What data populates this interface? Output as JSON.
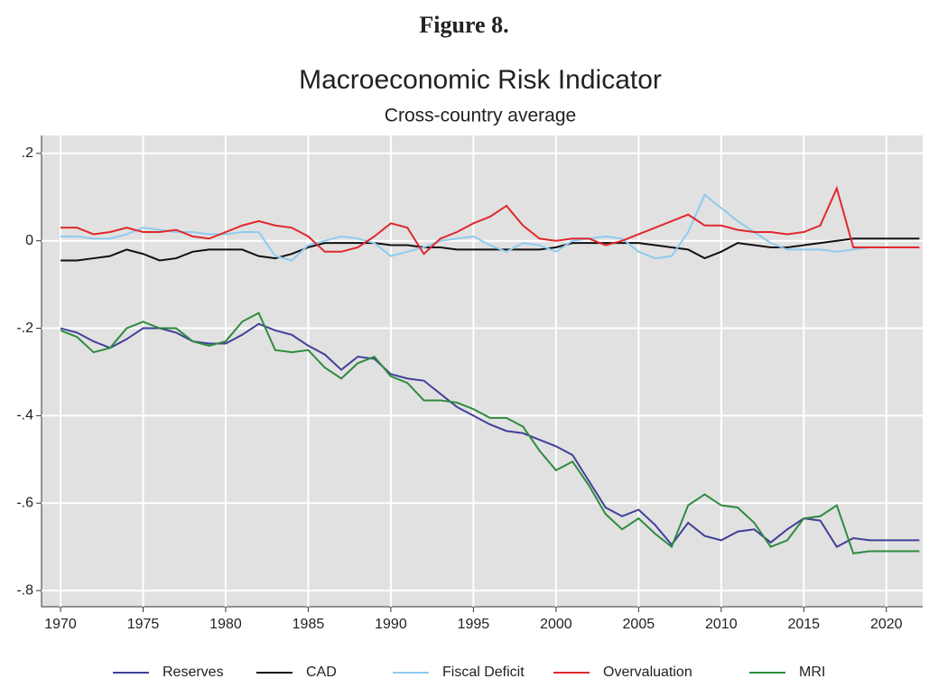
{
  "figure_label": "Figure 8.",
  "chart_data": {
    "type": "line",
    "title": "Macroeconomic Risk Indicator",
    "subtitle": "Cross-country average",
    "x": [
      1970,
      1971,
      1972,
      1973,
      1974,
      1975,
      1976,
      1977,
      1978,
      1979,
      1980,
      1981,
      1982,
      1983,
      1984,
      1985,
      1986,
      1987,
      1988,
      1989,
      1990,
      1991,
      1992,
      1993,
      1994,
      1995,
      1996,
      1997,
      1998,
      1999,
      2000,
      2001,
      2002,
      2003,
      2004,
      2005,
      2006,
      2007,
      2008,
      2009,
      2010,
      2011,
      2012,
      2013,
      2014,
      2015,
      2016,
      2017,
      2018,
      2019,
      2020,
      2021,
      2022
    ],
    "xlim": [
      1968.85,
      2022.2
    ],
    "xticks": [
      1970,
      1975,
      1980,
      1985,
      1990,
      1995,
      2000,
      2005,
      2010,
      2015,
      2020
    ],
    "ylim": [
      -0.837,
      0.241
    ],
    "yticks": [
      {
        "value": 0.2,
        "label": ".2"
      },
      0,
      {
        "value": -0.2,
        "label": "-.2"
      },
      {
        "value": -0.4,
        "label": "-.4"
      },
      {
        "value": -0.6,
        "label": "-.6"
      },
      {
        "value": -0.8,
        "label": "-.8"
      }
    ],
    "grid": true,
    "legend": "bottom",
    "series": [
      {
        "name": "Reserves",
        "color": "#40409a",
        "values": [
          -0.2,
          -0.21,
          -0.23,
          -0.245,
          -0.225,
          -0.2,
          -0.2,
          -0.21,
          -0.23,
          -0.235,
          -0.235,
          -0.215,
          -0.19,
          -0.205,
          -0.215,
          -0.24,
          -0.26,
          -0.295,
          -0.265,
          -0.27,
          -0.305,
          -0.315,
          -0.32,
          -0.35,
          -0.38,
          -0.4,
          -0.42,
          -0.435,
          -0.44,
          -0.455,
          -0.47,
          -0.49,
          -0.55,
          -0.61,
          -0.63,
          -0.615,
          -0.65,
          -0.695,
          -0.645,
          -0.675,
          -0.685,
          -0.665,
          -0.66,
          -0.69,
          -0.66,
          -0.635,
          -0.64,
          -0.7,
          -0.68,
          -0.685,
          -0.685,
          -0.685,
          -0.685
        ]
      },
      {
        "name": "CAD",
        "color": "#111111",
        "values": [
          -0.045,
          -0.045,
          -0.04,
          -0.035,
          -0.02,
          -0.03,
          -0.045,
          -0.04,
          -0.025,
          -0.02,
          -0.02,
          -0.02,
          -0.035,
          -0.04,
          -0.03,
          -0.015,
          -0.005,
          -0.005,
          -0.005,
          -0.005,
          -0.01,
          -0.01,
          -0.015,
          -0.015,
          -0.02,
          -0.02,
          -0.02,
          -0.02,
          -0.02,
          -0.02,
          -0.015,
          -0.005,
          -0.005,
          -0.005,
          -0.005,
          -0.005,
          -0.01,
          -0.015,
          -0.02,
          -0.04,
          -0.025,
          -0.005,
          -0.01,
          -0.015,
          -0.015,
          -0.01,
          -0.005,
          0,
          0.005,
          0.005,
          0.005,
          0.005,
          0.005
        ]
      },
      {
        "name": "Fiscal Deficit",
        "color": "#8ecbee",
        "values": [
          0.01,
          0.01,
          0.005,
          0.005,
          0.015,
          0.03,
          0.025,
          0.02,
          0.02,
          0.015,
          0.015,
          0.02,
          0.02,
          -0.035,
          -0.045,
          -0.01,
          0,
          0.01,
          0.005,
          -0.005,
          -0.035,
          -0.025,
          -0.015,
          0,
          0.005,
          0.01,
          -0.01,
          -0.025,
          -0.005,
          -0.01,
          -0.025,
          0,
          0.005,
          0.01,
          0.005,
          -0.025,
          -0.04,
          -0.035,
          0.02,
          0.105,
          0.075,
          0.045,
          0.02,
          -0.005,
          -0.02,
          -0.02,
          -0.02,
          -0.025,
          -0.02,
          -0.015,
          -0.015,
          -0.015,
          -0.015
        ]
      },
      {
        "name": "Overvaluation",
        "color": "#e0282d",
        "values": [
          0.03,
          0.03,
          0.015,
          0.02,
          0.03,
          0.02,
          0.02,
          0.025,
          0.01,
          0.005,
          0.02,
          0.035,
          0.045,
          0.035,
          0.03,
          0.01,
          -0.025,
          -0.025,
          -0.015,
          0.01,
          0.04,
          0.03,
          -0.03,
          0.005,
          0.02,
          0.04,
          0.055,
          0.08,
          0.035,
          0.005,
          0,
          0.005,
          0.005,
          -0.01,
          0,
          0.015,
          0.03,
          0.045,
          0.06,
          0.035,
          0.035,
          0.025,
          0.02,
          0.02,
          0.015,
          0.02,
          0.035,
          0.12,
          -0.015,
          -0.015,
          -0.015,
          -0.015,
          -0.015
        ]
      },
      {
        "name": "MRI",
        "color": "#2e8b3e",
        "values": [
          -0.205,
          -0.22,
          -0.255,
          -0.245,
          -0.2,
          -0.185,
          -0.2,
          -0.2,
          -0.23,
          -0.24,
          -0.23,
          -0.185,
          -0.165,
          -0.25,
          -0.255,
          -0.25,
          -0.29,
          -0.315,
          -0.28,
          -0.265,
          -0.31,
          -0.325,
          -0.365,
          -0.365,
          -0.37,
          -0.385,
          -0.405,
          -0.405,
          -0.425,
          -0.48,
          -0.525,
          -0.505,
          -0.56,
          -0.625,
          -0.66,
          -0.635,
          -0.67,
          -0.7,
          -0.605,
          -0.58,
          -0.605,
          -0.61,
          -0.645,
          -0.7,
          -0.685,
          -0.635,
          -0.63,
          -0.605,
          -0.715,
          -0.71,
          -0.71,
          -0.71,
          -0.71
        ]
      }
    ]
  }
}
